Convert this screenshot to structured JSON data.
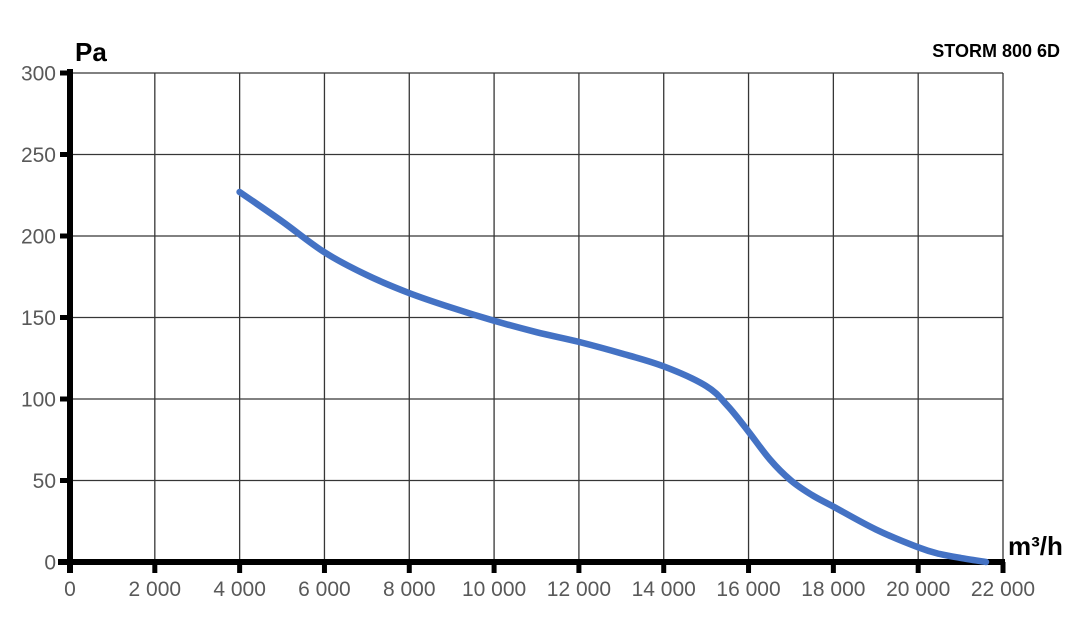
{
  "chart_data": {
    "type": "line",
    "title": "STORM 800 6D",
    "xlabel": "m³/h",
    "ylabel": "Pa",
    "xlim": [
      0,
      22000
    ],
    "ylim": [
      0,
      300
    ],
    "grid": true,
    "legend": "none",
    "x_ticks": [
      0,
      2000,
      4000,
      6000,
      8000,
      10000,
      12000,
      14000,
      16000,
      18000,
      20000,
      22000
    ],
    "x_tick_labels": [
      "0",
      "2 000",
      "4 000",
      "6 000",
      "8 000",
      "10 000",
      "12 000",
      "14 000",
      "16 000",
      "18 000",
      "20 000",
      "22 000"
    ],
    "y_ticks": [
      0,
      50,
      100,
      150,
      200,
      250,
      300
    ],
    "y_tick_labels": [
      "0",
      "50",
      "100",
      "150",
      "200",
      "250",
      "300"
    ],
    "series": [
      {
        "name": "STORM 800 6D",
        "color": "#4472C4",
        "points": [
          [
            4000,
            227
          ],
          [
            5000,
            209
          ],
          [
            6000,
            190
          ],
          [
            7000,
            176
          ],
          [
            8000,
            165
          ],
          [
            9000,
            156
          ],
          [
            10000,
            148
          ],
          [
            11000,
            141
          ],
          [
            12000,
            135
          ],
          [
            13000,
            128
          ],
          [
            14000,
            120
          ],
          [
            15000,
            108
          ],
          [
            15500,
            96
          ],
          [
            16000,
            80
          ],
          [
            16500,
            63
          ],
          [
            17000,
            50
          ],
          [
            17500,
            41
          ],
          [
            18000,
            34
          ],
          [
            19000,
            20
          ],
          [
            20000,
            9
          ],
          [
            20500,
            5
          ],
          [
            21000,
            2.5
          ],
          [
            21600,
            0
          ]
        ]
      }
    ],
    "colors": {
      "curve": "#4472C4",
      "axis": "#000000",
      "tick_label": "#595959",
      "grid": "#363636",
      "background": "#ffffff"
    }
  }
}
